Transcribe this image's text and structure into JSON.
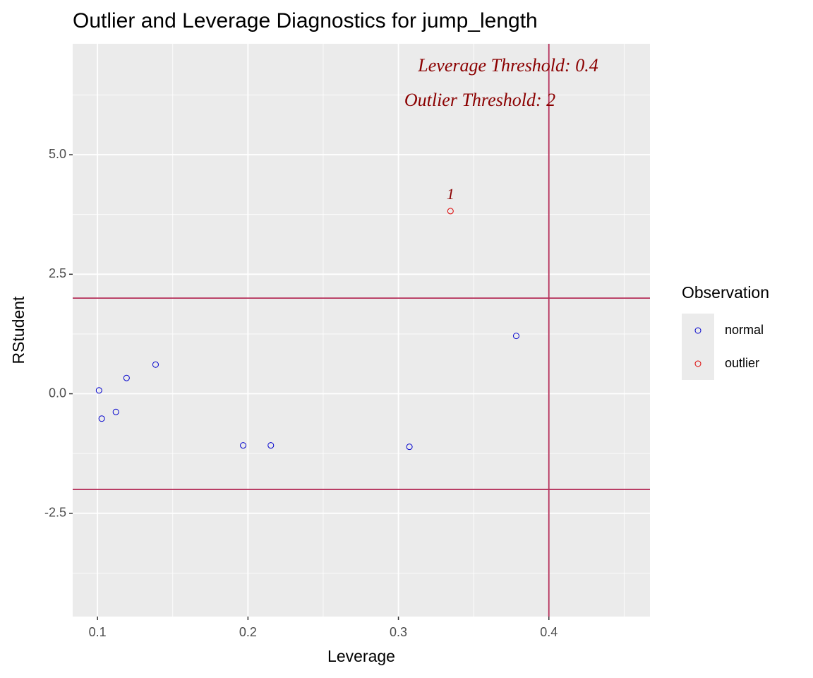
{
  "chart_data": {
    "type": "scatter",
    "title": "Outlier and Leverage Diagnostics for jump_length",
    "x_label": "Leverage",
    "y_label": "RStudent",
    "xlim": [
      0.0835,
      0.4672
    ],
    "ylim": [
      -4.66,
      7.32
    ],
    "xticks": [
      0.1,
      0.2,
      0.3,
      0.4
    ],
    "yticks": [
      {
        "value": -2.5,
        "label": "-2.5"
      },
      {
        "value": 0,
        "label": "0.0"
      },
      {
        "value": 2.5,
        "label": "2.5"
      },
      {
        "value": 5,
        "label": "5.0"
      }
    ],
    "xminor": [
      0.15,
      0.25,
      0.35,
      0.45
    ],
    "yminor": [
      -3.75,
      -1.25,
      1.25,
      3.75,
      6.25
    ],
    "grid": true,
    "series": [
      {
        "name": "normal",
        "color": "#0000cc",
        "x": [
          0.101,
          0.1028,
          0.1122,
          0.1193,
          0.1386,
          0.1968,
          0.2152,
          0.3073,
          0.3783
        ],
        "values": [
          0.07,
          -0.52,
          -0.38,
          0.33,
          0.61,
          -1.08,
          -1.08,
          -1.11,
          1.21
        ]
      },
      {
        "name": "outlier",
        "color": "#dd0000",
        "x": [
          0.3346
        ],
        "values": [
          3.82
        ],
        "point_labels": [
          "1"
        ]
      }
    ],
    "hlines": [
      2,
      -2
    ],
    "vlines": [
      0.4
    ],
    "threshold_color": "#b5305a",
    "annotations": [
      "Leverage Threshold: 0.4",
      "Outlier Threshold: 2"
    ],
    "annotation_color": "#8b0000",
    "legend_title": "Observation",
    "legend_position": "right"
  }
}
